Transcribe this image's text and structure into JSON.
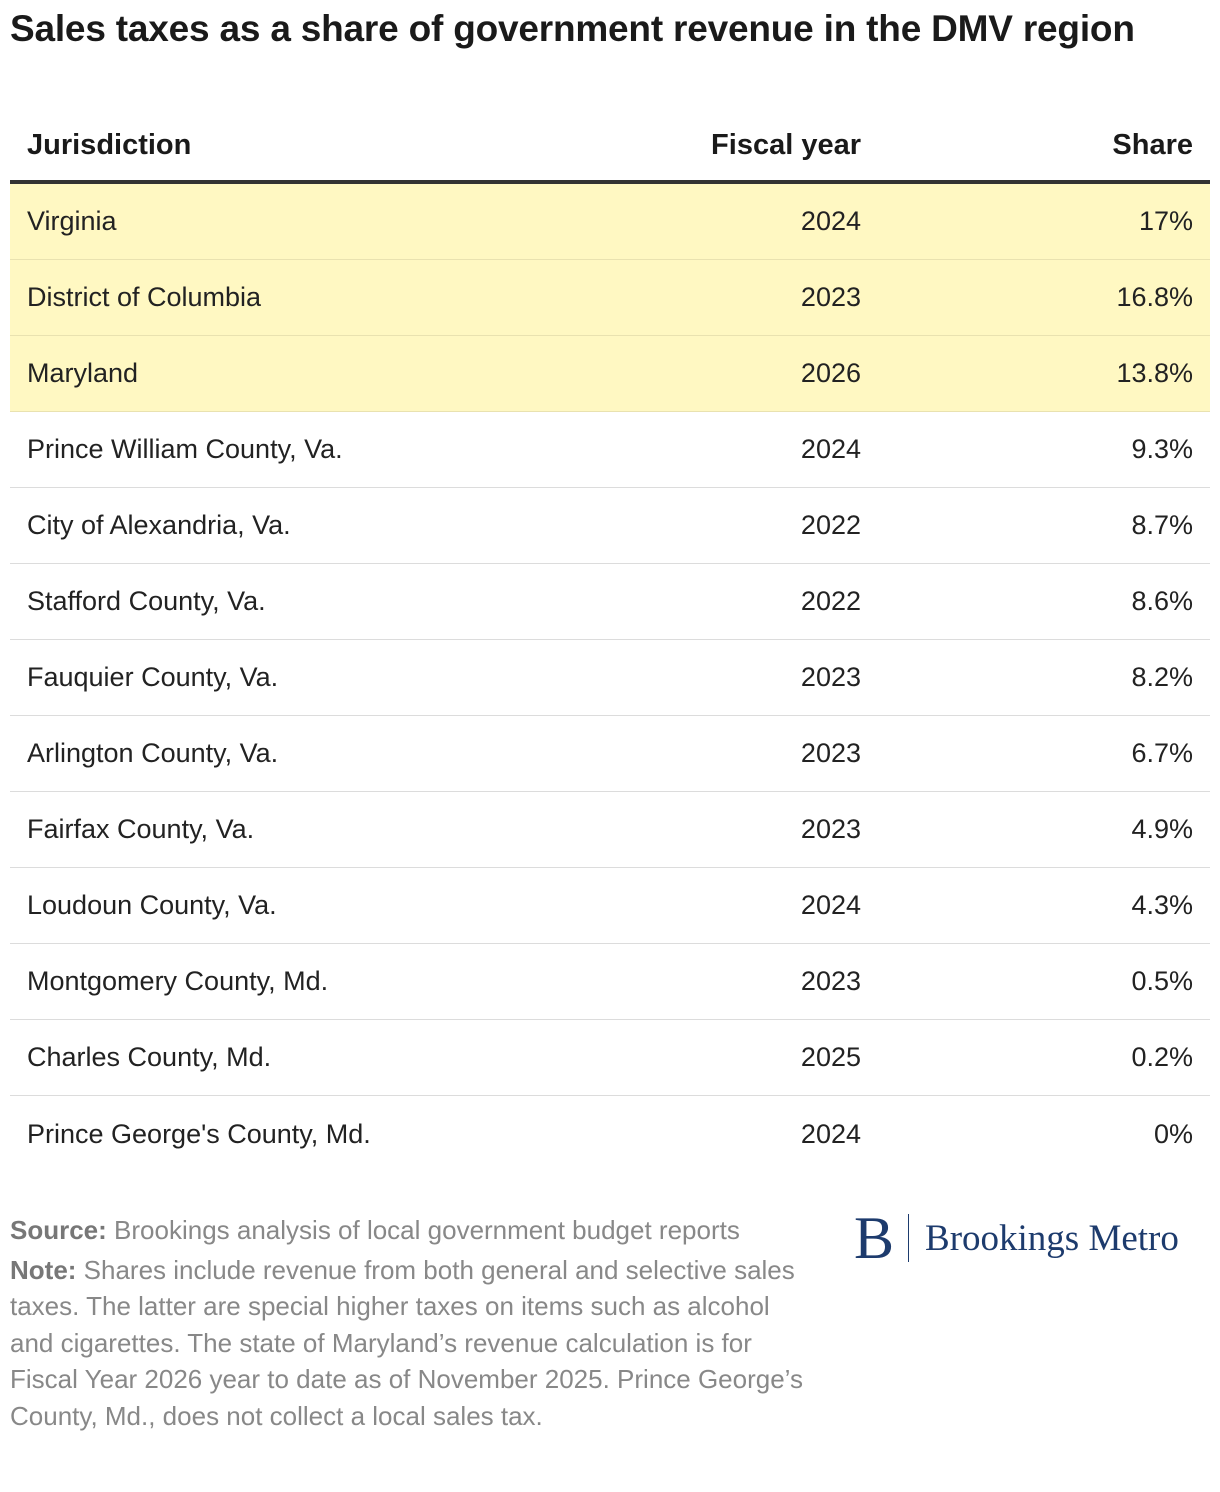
{
  "chart_data": {
    "type": "table",
    "title": "Sales taxes as a share of government revenue in the DMV region",
    "columns": [
      "Jurisdiction",
      "Fiscal year",
      "Share"
    ],
    "rows": [
      {
        "jurisdiction": "Virginia",
        "fiscal_year": "2024",
        "share": "17%",
        "highlight": true
      },
      {
        "jurisdiction": "District of Columbia",
        "fiscal_year": "2023",
        "share": "16.8%",
        "highlight": true
      },
      {
        "jurisdiction": "Maryland",
        "fiscal_year": "2026",
        "share": "13.8%",
        "highlight": true
      },
      {
        "jurisdiction": "Prince William County, Va.",
        "fiscal_year": "2024",
        "share": "9.3%",
        "highlight": false
      },
      {
        "jurisdiction": "City of Alexandria, Va.",
        "fiscal_year": "2022",
        "share": "8.7%",
        "highlight": false
      },
      {
        "jurisdiction": "Stafford County, Va.",
        "fiscal_year": "2022",
        "share": "8.6%",
        "highlight": false
      },
      {
        "jurisdiction": "Fauquier County, Va.",
        "fiscal_year": "2023",
        "share": "8.2%",
        "highlight": false
      },
      {
        "jurisdiction": "Arlington County, Va.",
        "fiscal_year": "2023",
        "share": "6.7%",
        "highlight": false
      },
      {
        "jurisdiction": "Fairfax County, Va.",
        "fiscal_year": "2023",
        "share": "4.9%",
        "highlight": false
      },
      {
        "jurisdiction": "Loudoun County, Va.",
        "fiscal_year": "2024",
        "share": "4.3%",
        "highlight": false
      },
      {
        "jurisdiction": "Montgomery County, Md.",
        "fiscal_year": "2023",
        "share": "0.5%",
        "highlight": false
      },
      {
        "jurisdiction": "Charles County, Md.",
        "fiscal_year": "2025",
        "share": "0.2%",
        "highlight": false
      },
      {
        "jurisdiction": "Prince George's County, Md.",
        "fiscal_year": "2024",
        "share": "0%",
        "highlight": false
      }
    ],
    "highlight_color": "#fff8c2"
  },
  "footer": {
    "source_label": "Source:",
    "source_text": "Brookings analysis of local government budget reports",
    "note_label": "Note:",
    "note_text": "Shares include revenue from both general and selective sales taxes. The latter are special higher taxes on items such as alcohol and cigarettes. The state of Maryland’s revenue calculation is for Fiscal Year 2026 year to date as of November 2025. Prince George’s County, Md., does not collect a local sales tax."
  },
  "logo": {
    "mark": "B",
    "text": "Brookings Metro",
    "color": "#1d3b6d"
  }
}
